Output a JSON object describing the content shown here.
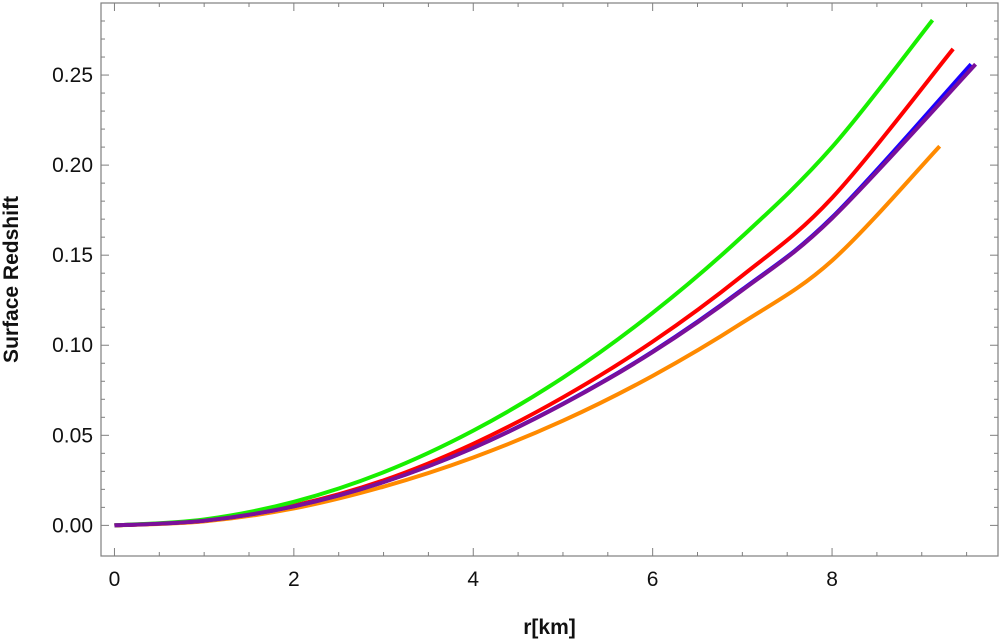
{
  "chart_data": {
    "type": "line",
    "xlabel": "r[km]",
    "ylabel": "Surface Redshift",
    "xlim": [
      -0.15,
      9.85
    ],
    "ylim": [
      -0.017,
      0.29
    ],
    "x_ticks": [
      0,
      2,
      4,
      6,
      8
    ],
    "x_tick_labels": [
      "0",
      "2",
      "4",
      "6",
      "8"
    ],
    "y_ticks": [
      0,
      0.05,
      0.1,
      0.15,
      0.2,
      0.25
    ],
    "y_tick_labels": [
      "0.00",
      "0.05",
      "0.10",
      "0.15",
      "0.20",
      "0.25"
    ],
    "grid": false,
    "legend": "none",
    "colors": {
      "frame": "#7f7f7f",
      "text": "#111111",
      "background": "#ffffff"
    },
    "series": [
      {
        "color": "#ff8a00",
        "x": [
          0,
          1,
          2,
          3,
          4,
          5,
          6,
          7,
          8,
          9.2
        ],
        "values": [
          0,
          0.0022,
          0.0094,
          0.0215,
          0.0377,
          0.0581,
          0.083,
          0.1125,
          0.147,
          0.2105
        ]
      },
      {
        "color": "#1b00ff",
        "x": [
          0,
          1,
          2,
          3,
          4,
          5,
          6,
          7,
          8,
          9.55
        ],
        "values": [
          0,
          0.0026,
          0.0106,
          0.0241,
          0.0431,
          0.0675,
          0.0965,
          0.131,
          0.171,
          0.256
        ]
      },
      {
        "color": "#ff0000",
        "x": [
          0,
          1,
          2,
          3,
          4,
          5,
          6,
          7,
          8,
          9.35
        ],
        "values": [
          0,
          0.0027,
          0.011,
          0.025,
          0.0453,
          0.0711,
          0.102,
          0.1387,
          0.1818,
          0.2645
        ]
      },
      {
        "color": "#18ef00",
        "x": [
          0,
          1,
          2,
          3,
          4,
          5,
          6,
          7,
          8,
          9.12
        ],
        "values": [
          0,
          0.0033,
          0.0131,
          0.0295,
          0.0526,
          0.082,
          0.118,
          0.1605,
          0.21,
          0.2805
        ]
      },
      {
        "color": "#7a109a",
        "x": [
          0,
          1,
          2,
          3,
          4,
          5,
          6,
          7,
          8,
          9.6
        ],
        "values": [
          0,
          0.0026,
          0.0106,
          0.024,
          0.043,
          0.0673,
          0.0962,
          0.1306,
          0.1705,
          0.256
        ]
      }
    ]
  }
}
